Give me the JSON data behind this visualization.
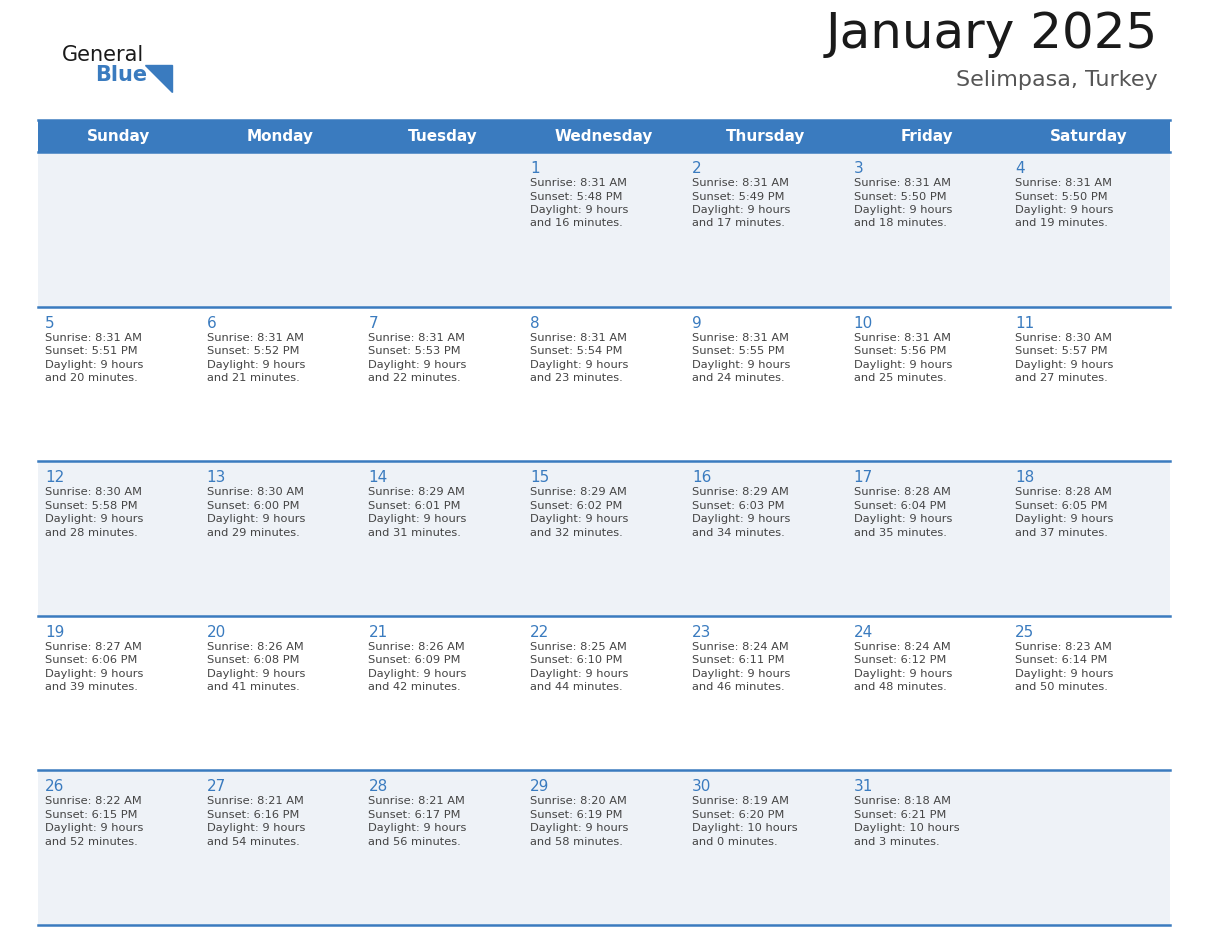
{
  "title": "January 2025",
  "subtitle": "Selimpasa, Turkey",
  "days_of_week": [
    "Sunday",
    "Monday",
    "Tuesday",
    "Wednesday",
    "Thursday",
    "Friday",
    "Saturday"
  ],
  "header_bg": "#3a7bbf",
  "header_text": "#ffffff",
  "row_bg_even": "#eef2f7",
  "row_bg_odd": "#ffffff",
  "day_num_color": "#3a7bbf",
  "text_color": "#444444",
  "line_color": "#3a7bbf",
  "border_color": "#3a7bbf",
  "calendar_data": [
    [
      null,
      null,
      null,
      {
        "day": 1,
        "sunrise": "8:31 AM",
        "sunset": "5:48 PM",
        "daylight": "9 hours",
        "daylight2": "and 16 minutes."
      },
      {
        "day": 2,
        "sunrise": "8:31 AM",
        "sunset": "5:49 PM",
        "daylight": "9 hours",
        "daylight2": "and 17 minutes."
      },
      {
        "day": 3,
        "sunrise": "8:31 AM",
        "sunset": "5:50 PM",
        "daylight": "9 hours",
        "daylight2": "and 18 minutes."
      },
      {
        "day": 4,
        "sunrise": "8:31 AM",
        "sunset": "5:50 PM",
        "daylight": "9 hours",
        "daylight2": "and 19 minutes."
      }
    ],
    [
      {
        "day": 5,
        "sunrise": "8:31 AM",
        "sunset": "5:51 PM",
        "daylight": "9 hours",
        "daylight2": "and 20 minutes."
      },
      {
        "day": 6,
        "sunrise": "8:31 AM",
        "sunset": "5:52 PM",
        "daylight": "9 hours",
        "daylight2": "and 21 minutes."
      },
      {
        "day": 7,
        "sunrise": "8:31 AM",
        "sunset": "5:53 PM",
        "daylight": "9 hours",
        "daylight2": "and 22 minutes."
      },
      {
        "day": 8,
        "sunrise": "8:31 AM",
        "sunset": "5:54 PM",
        "daylight": "9 hours",
        "daylight2": "and 23 minutes."
      },
      {
        "day": 9,
        "sunrise": "8:31 AM",
        "sunset": "5:55 PM",
        "daylight": "9 hours",
        "daylight2": "and 24 minutes."
      },
      {
        "day": 10,
        "sunrise": "8:31 AM",
        "sunset": "5:56 PM",
        "daylight": "9 hours",
        "daylight2": "and 25 minutes."
      },
      {
        "day": 11,
        "sunrise": "8:30 AM",
        "sunset": "5:57 PM",
        "daylight": "9 hours",
        "daylight2": "and 27 minutes."
      }
    ],
    [
      {
        "day": 12,
        "sunrise": "8:30 AM",
        "sunset": "5:58 PM",
        "daylight": "9 hours",
        "daylight2": "and 28 minutes."
      },
      {
        "day": 13,
        "sunrise": "8:30 AM",
        "sunset": "6:00 PM",
        "daylight": "9 hours",
        "daylight2": "and 29 minutes."
      },
      {
        "day": 14,
        "sunrise": "8:29 AM",
        "sunset": "6:01 PM",
        "daylight": "9 hours",
        "daylight2": "and 31 minutes."
      },
      {
        "day": 15,
        "sunrise": "8:29 AM",
        "sunset": "6:02 PM",
        "daylight": "9 hours",
        "daylight2": "and 32 minutes."
      },
      {
        "day": 16,
        "sunrise": "8:29 AM",
        "sunset": "6:03 PM",
        "daylight": "9 hours",
        "daylight2": "and 34 minutes."
      },
      {
        "day": 17,
        "sunrise": "8:28 AM",
        "sunset": "6:04 PM",
        "daylight": "9 hours",
        "daylight2": "and 35 minutes."
      },
      {
        "day": 18,
        "sunrise": "8:28 AM",
        "sunset": "6:05 PM",
        "daylight": "9 hours",
        "daylight2": "and 37 minutes."
      }
    ],
    [
      {
        "day": 19,
        "sunrise": "8:27 AM",
        "sunset": "6:06 PM",
        "daylight": "9 hours",
        "daylight2": "and 39 minutes."
      },
      {
        "day": 20,
        "sunrise": "8:26 AM",
        "sunset": "6:08 PM",
        "daylight": "9 hours",
        "daylight2": "and 41 minutes."
      },
      {
        "day": 21,
        "sunrise": "8:26 AM",
        "sunset": "6:09 PM",
        "daylight": "9 hours",
        "daylight2": "and 42 minutes."
      },
      {
        "day": 22,
        "sunrise": "8:25 AM",
        "sunset": "6:10 PM",
        "daylight": "9 hours",
        "daylight2": "and 44 minutes."
      },
      {
        "day": 23,
        "sunrise": "8:24 AM",
        "sunset": "6:11 PM",
        "daylight": "9 hours",
        "daylight2": "and 46 minutes."
      },
      {
        "day": 24,
        "sunrise": "8:24 AM",
        "sunset": "6:12 PM",
        "daylight": "9 hours",
        "daylight2": "and 48 minutes."
      },
      {
        "day": 25,
        "sunrise": "8:23 AM",
        "sunset": "6:14 PM",
        "daylight": "9 hours",
        "daylight2": "and 50 minutes."
      }
    ],
    [
      {
        "day": 26,
        "sunrise": "8:22 AM",
        "sunset": "6:15 PM",
        "daylight": "9 hours",
        "daylight2": "and 52 minutes."
      },
      {
        "day": 27,
        "sunrise": "8:21 AM",
        "sunset": "6:16 PM",
        "daylight": "9 hours",
        "daylight2": "and 54 minutes."
      },
      {
        "day": 28,
        "sunrise": "8:21 AM",
        "sunset": "6:17 PM",
        "daylight": "9 hours",
        "daylight2": "and 56 minutes."
      },
      {
        "day": 29,
        "sunrise": "8:20 AM",
        "sunset": "6:19 PM",
        "daylight": "9 hours",
        "daylight2": "and 58 minutes."
      },
      {
        "day": 30,
        "sunrise": "8:19 AM",
        "sunset": "6:20 PM",
        "daylight": "10 hours",
        "daylight2": "and 0 minutes."
      },
      {
        "day": 31,
        "sunrise": "8:18 AM",
        "sunset": "6:21 PM",
        "daylight": "10 hours",
        "daylight2": "and 3 minutes."
      },
      null
    ]
  ]
}
